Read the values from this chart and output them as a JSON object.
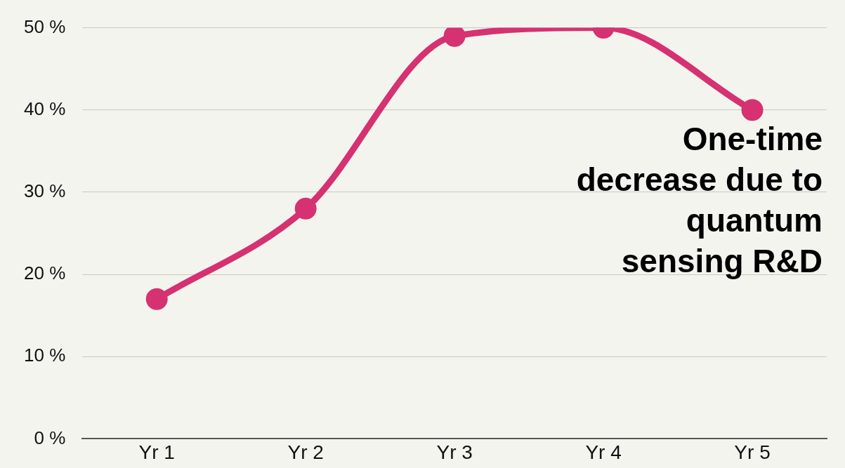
{
  "chart_data": {
    "type": "line",
    "categories": [
      "Yr 1",
      "Yr 2",
      "Yr 3",
      "Yr 4",
      "Yr 5"
    ],
    "series": [
      {
        "color": "#d63170",
        "values": [
          17,
          28,
          49,
          50,
          40
        ]
      }
    ],
    "ylim": [
      0,
      50
    ],
    "yticks": [
      {
        "value": 0,
        "label": "0 %"
      },
      {
        "value": 10,
        "label": "10 %"
      },
      {
        "value": 20,
        "label": "20 %"
      },
      {
        "value": 30,
        "label": "30 %"
      },
      {
        "value": 40,
        "label": "40 %"
      },
      {
        "value": 50,
        "label": "50 %"
      }
    ],
    "grid": "y",
    "legend": false,
    "marker": "circle",
    "line_style": "solid",
    "annotations": [
      {
        "text": "One-time decrease due to quantum sensing R&D",
        "x": "Yr 5",
        "y": 40
      }
    ]
  }
}
